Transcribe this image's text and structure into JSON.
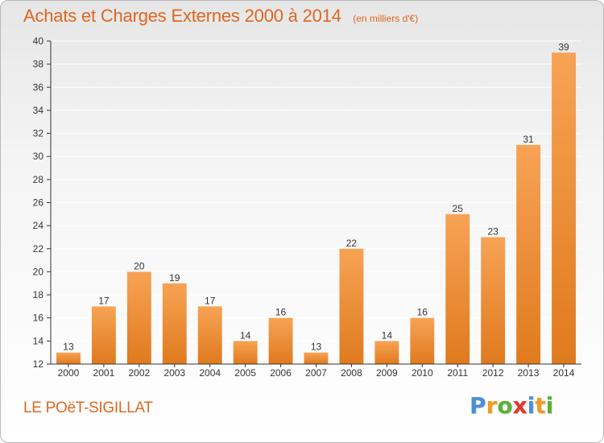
{
  "title": "Achats et Charges Externes 2000 à 2014",
  "subtitle": "(en milliers d'€)",
  "commune": "LE POëT-SIGILLAT",
  "logo": {
    "letters": [
      "P",
      "r",
      "o",
      "x",
      "i",
      "t",
      "i"
    ],
    "colors": [
      "#4a90d9",
      "#f29a1f",
      "#5bb035",
      "#e8322b",
      "#4a90d9",
      "#f29a1f",
      "#5bb035"
    ]
  },
  "colors": {
    "title": "#e06620",
    "bar_top": "#f7a355",
    "bar_bottom": "#e07a1e",
    "axis": "#333333",
    "grid": "#ffffff"
  },
  "chart_data": {
    "type": "bar",
    "categories": [
      "2000",
      "2001",
      "2002",
      "2003",
      "2004",
      "2005",
      "2006",
      "2007",
      "2008",
      "2009",
      "2010",
      "2011",
      "2012",
      "2013",
      "2014"
    ],
    "values": [
      13,
      17,
      20,
      19,
      17,
      14,
      16,
      13,
      22,
      14,
      16,
      25,
      23,
      31,
      39
    ],
    "ylim": [
      12,
      40
    ],
    "yticks": [
      "12",
      "14",
      "16",
      "18",
      "20",
      "22",
      "24",
      "26",
      "28",
      "30",
      "32",
      "34",
      "36",
      "38",
      "40"
    ],
    "grid": true,
    "xlabel": "",
    "ylabel": ""
  }
}
